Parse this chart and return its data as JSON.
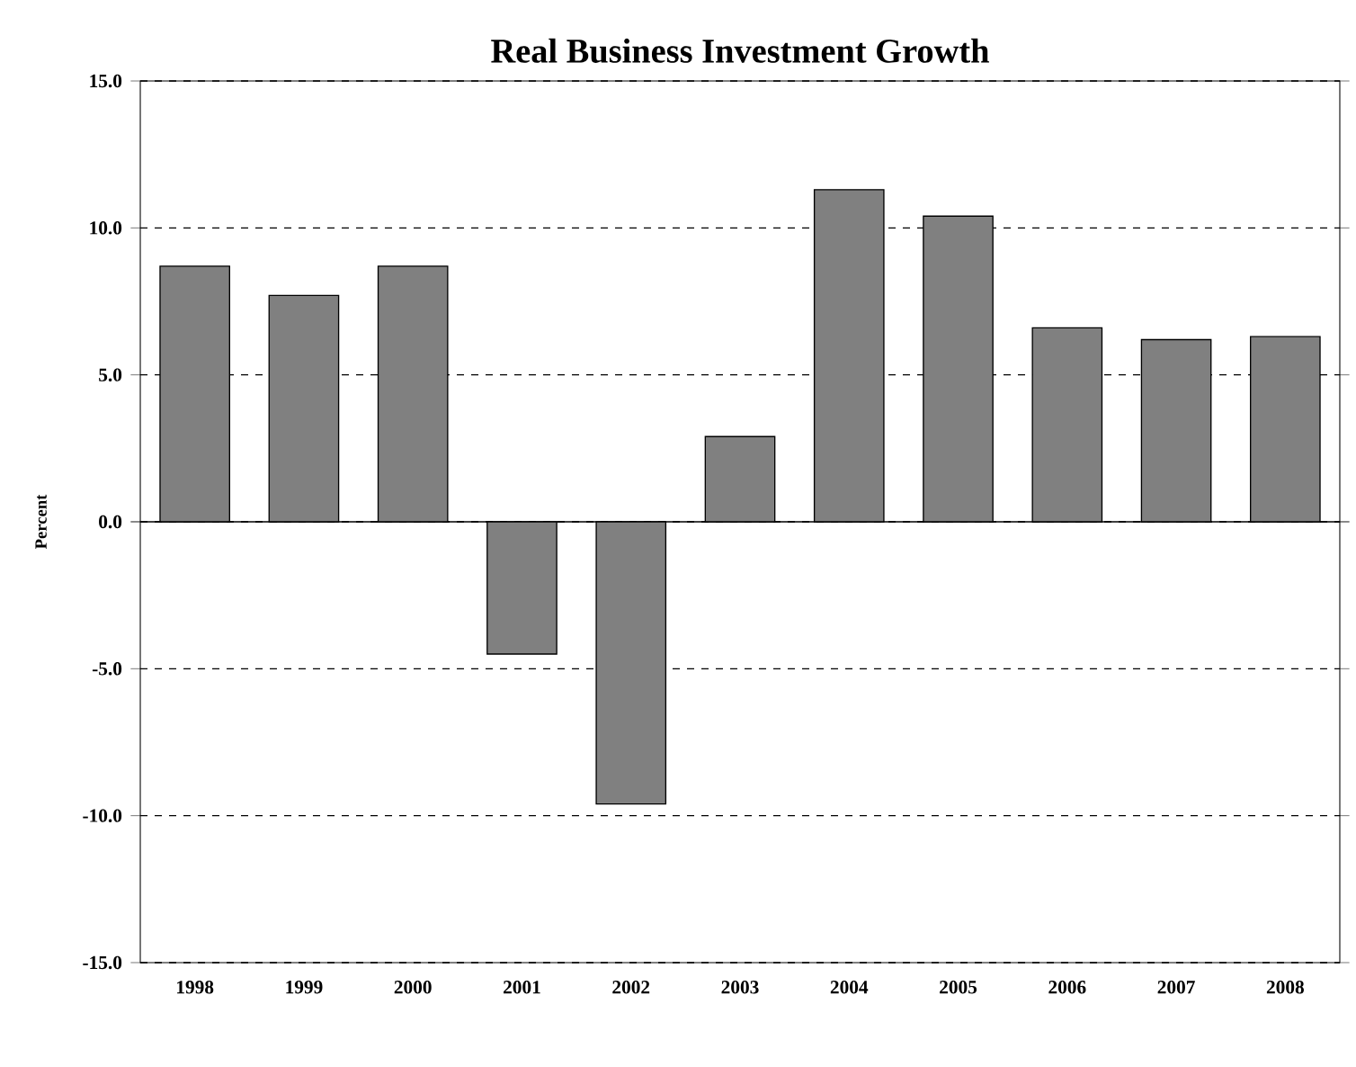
{
  "chart_data": {
    "type": "bar",
    "title": "Real Business Investment Growth",
    "ylabel": "Percent",
    "categories": [
      "1998",
      "1999",
      "2000",
      "2001",
      "2002",
      "2003",
      "2004",
      "2005",
      "2006",
      "2007",
      "2008"
    ],
    "values": [
      8.7,
      7.7,
      8.7,
      -4.5,
      -9.6,
      2.9,
      11.3,
      10.4,
      6.6,
      6.2,
      6.3
    ],
    "color": "#808080",
    "ylim": [
      -15,
      15
    ],
    "yticks": [
      {
        "value": -15,
        "label": "-15.0"
      },
      {
        "value": -10,
        "label": "-10.0"
      },
      {
        "value": -5,
        "label": "-5.0"
      },
      {
        "value": 0,
        "label": "0.0"
      },
      {
        "value": 5,
        "label": "5.0"
      },
      {
        "value": 10,
        "label": "10.0"
      },
      {
        "value": 15,
        "label": "15.0"
      }
    ],
    "grid": "y"
  }
}
